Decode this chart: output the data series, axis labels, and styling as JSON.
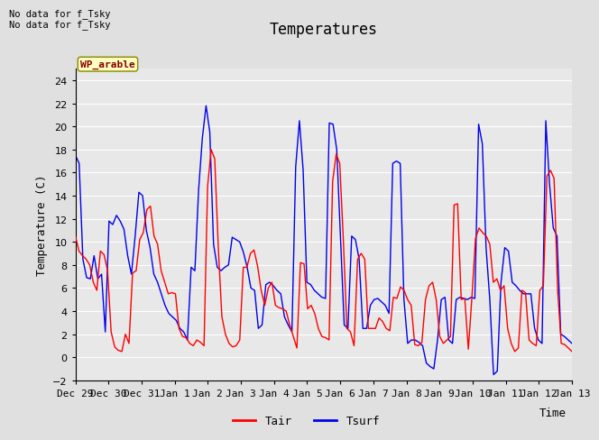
{
  "title": "Temperatures",
  "xlabel": "Time",
  "ylabel": "Temperature (C)",
  "ylim": [
    -2,
    25
  ],
  "yticks": [
    -2,
    0,
    2,
    4,
    6,
    8,
    10,
    12,
    14,
    16,
    18,
    20,
    22,
    24
  ],
  "xtick_labels": [
    "Dec 29",
    "Dec 30",
    "Dec 31",
    "Jan 1",
    "Jan 2",
    "Jan 3",
    "Jan 4",
    "Jan 5",
    "Jan 6",
    "Jan 7",
    "Jan 8",
    "Jan 9",
    "Jan 10",
    "Jan 11",
    "Jan 12",
    "Jan 13"
  ],
  "annotation_text": "No data for f_Tsky\nNo data for f_Tsky",
  "box_label": "WP_arable",
  "tair_color": "#FF0000",
  "tsurf_color": "#0000EE",
  "bg_color": "#E8E8E8",
  "grid_color": "#FFFFFF",
  "fig_bg_color": "#E0E0E0",
  "title_fontsize": 12,
  "axis_fontsize": 9,
  "tick_fontsize": 8,
  "legend_fontsize": 9,
  "tair": [
    10.5,
    9.2,
    8.8,
    8.5,
    8.0,
    6.5,
    5.8,
    9.2,
    8.9,
    7.5,
    2.2,
    0.9,
    0.6,
    0.5,
    2.0,
    1.2,
    7.3,
    7.5,
    10.2,
    10.8,
    12.8,
    13.1,
    10.5,
    9.8,
    7.5,
    6.5,
    5.5,
    5.6,
    5.5,
    2.5,
    1.8,
    1.7,
    1.2,
    1.0,
    1.5,
    1.3,
    1.0,
    14.8,
    18.0,
    17.2,
    9.5,
    3.5,
    2.0,
    1.2,
    0.9,
    1.0,
    1.5,
    7.8,
    7.8,
    9.0,
    9.3,
    7.9,
    5.8,
    4.5,
    6.0,
    6.5,
    4.5,
    4.3,
    4.2,
    4.0,
    2.8,
    1.8,
    0.8,
    8.2,
    8.1,
    4.2,
    4.5,
    3.8,
    2.5,
    1.8,
    1.7,
    1.5,
    15.2,
    17.6,
    16.8,
    10.2,
    2.5,
    2.2,
    1.0,
    8.5,
    9.0,
    8.5,
    2.5,
    2.5,
    2.5,
    3.4,
    3.1,
    2.5,
    2.3,
    5.2,
    5.1,
    6.1,
    5.8,
    5.0,
    4.5,
    1.1,
    1.0,
    1.3,
    5.0,
    6.2,
    6.5,
    5.0,
    1.8,
    1.2,
    1.5,
    1.8,
    13.2,
    13.3,
    5.0,
    5.1,
    0.7,
    5.2,
    10.3,
    11.2,
    10.8,
    10.5,
    9.8,
    6.5,
    6.8,
    5.8,
    6.2,
    2.5,
    1.2,
    0.5,
    0.8,
    5.8,
    5.6,
    1.5,
    1.2,
    1.0,
    5.8,
    6.2,
    15.7,
    16.2,
    15.5,
    5.8,
    1.2,
    1.1,
    0.8,
    0.5
  ],
  "tsurf": [
    17.5,
    16.8,
    8.5,
    6.9,
    6.8,
    8.8,
    6.8,
    7.2,
    2.2,
    11.8,
    11.5,
    12.3,
    11.8,
    11.1,
    8.8,
    7.2,
    10.5,
    14.3,
    14.0,
    11.0,
    9.5,
    7.2,
    6.5,
    5.5,
    4.5,
    3.8,
    3.5,
    3.2,
    2.5,
    2.2,
    1.5,
    7.8,
    7.5,
    14.5,
    19.0,
    21.8,
    19.5,
    9.8,
    7.8,
    7.5,
    7.8,
    8.0,
    10.4,
    10.2,
    10.0,
    9.1,
    7.8,
    6.0,
    5.8,
    2.5,
    2.8,
    6.3,
    6.5,
    6.2,
    5.8,
    5.5,
    3.5,
    2.8,
    2.2,
    16.5,
    20.5,
    16.2,
    6.5,
    6.3,
    5.8,
    5.5,
    5.2,
    5.1,
    20.3,
    20.2,
    18.0,
    10.5,
    2.8,
    2.5,
    10.5,
    10.2,
    8.5,
    2.5,
    2.5,
    4.5,
    5.0,
    5.1,
    4.8,
    4.5,
    3.8,
    16.8,
    17.0,
    16.8,
    5.0,
    1.2,
    1.5,
    1.5,
    1.3,
    1.0,
    -0.5,
    -0.8,
    -1.0,
    1.5,
    5.0,
    5.2,
    1.5,
    1.2,
    5.0,
    5.2,
    5.1,
    5.0,
    5.2,
    5.1,
    20.2,
    18.5,
    9.5,
    5.0,
    -1.5,
    -1.2,
    6.5,
    9.5,
    9.2,
    6.5,
    6.2,
    5.8,
    5.5,
    5.5,
    5.5,
    2.5,
    1.5,
    1.2,
    20.5,
    15.0,
    11.2,
    10.5,
    2.0,
    1.8,
    1.5,
    1.2
  ]
}
